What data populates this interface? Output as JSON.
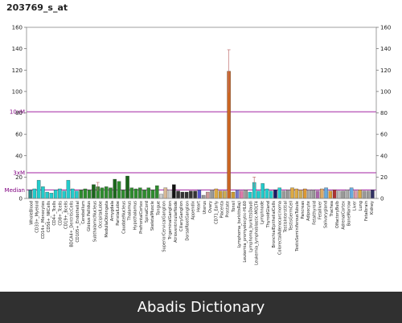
{
  "page": {
    "title": "203769_s_at"
  },
  "footer": {
    "text": "Abadis Dictionary"
  },
  "chart_data": {
    "type": "bar",
    "title": "203769_s_at",
    "ylim": [
      0,
      160
    ],
    "yticks": [
      0,
      20,
      40,
      60,
      80,
      100,
      120,
      140,
      160
    ],
    "y2ticks": [
      0,
      20,
      40,
      60,
      80,
      100,
      120,
      140,
      160
    ],
    "reference_lines": [
      {
        "label": "Median",
        "value": 8,
        "color": "#a020a0"
      },
      {
        "label": "3xM",
        "value": 24,
        "color": "#a020a0"
      },
      {
        "label": "10xM",
        "value": 81,
        "color": "#a020a0"
      }
    ],
    "categories": [
      "WholeBlood",
      "CD33+_Myeloid",
      "CD14+_Monocytes",
      "PB-CD14+Monocytes",
      "CD56+_NKCells",
      "CD4+_Tcells",
      "CD8+_Tcells",
      "CD19+_Bcells",
      "BDCA4+_DentriticCells",
      "CD71+_EarlyErythroid",
      "CD105+_Endothelial",
      "CD34+",
      "Cerebellum",
      "CerebellumPeduncles",
      "Globus Pallidus",
      "Hypothalamus",
      "SubthalamicNucleus",
      "Amygdala",
      "OccipitalLobe",
      "CingulateCortex",
      "TemporalLobe",
      "MedullaOblongata",
      "ParietalLobe",
      "CaudateNucleus",
      "Thalamus",
      "Hippocampus",
      "Pons",
      "PrefrontalCortex",
      "SpinalCord",
      "WholeBrain",
      "fetalbrain",
      "SkeletalMuscle",
      "Tongue",
      "SuperiorCervicalGanglion",
      "TrigeminalGanglion",
      "CiliaryGanglion",
      "AtrioventricularNode",
      "DorsalRootGanglion",
      "Heart",
      "Appendix",
      "UterusCorpus",
      "Uterus",
      "Ovary",
      "Skin",
      "Placenta",
      "CD71_Early",
      "Testis",
      "Prostate",
      "Thymus",
      "Tonsil",
      "Lymphoma_burkittsRaji",
      "Leukemia_promyelocytic-HL60",
      "Lymphoma_burkittsDaudi",
      "Leukemia_lymphoblastic-MOLT4",
      "Leukemia_chronicMyelogenous-K562",
      "Lymphnode",
      "ThyroidGland",
      "BronchialEpithelialCells",
      "ColorectalAdenocarcinoma",
      "Adrenalgland",
      "Pancreas",
      "TestisInterstitial",
      "TestisGermCell",
      "TestisLeydigCell",
      "TestisSeminiferousTubule",
      "PancreaticIslet",
      "Pituitary",
      "Adipocyte",
      "Fetalthyroid",
      "Fetalliver",
      "FetalLung",
      "Salivarygland",
      "Trachea",
      "OlfactoryBulb",
      "AdrenalCortex",
      "Appendix2",
      "BoneMarrow",
      "Liver",
      "Lung",
      "Heart2",
      "Kidney",
      "Fetalkidney"
    ],
    "xlabels": [
      "WholeBlood",
      "CD33+_Myeloid",
      "CD14+_Monocytes",
      "CD56+_NKCells",
      "CD4+_Tcells",
      "CD8+_Tcells",
      "CD19+_Bcells",
      "BDCA4+_DentriticCells",
      "CD105+_Endothelial",
      "Cerebellum",
      "Globus Pallidus",
      "SubthalamicNucleus",
      "OccipitalLobe",
      "MedullaOblongata",
      "Amygdala",
      "ParietalLobe",
      "CaudateNucleus",
      "Thalamus",
      "Hypothalamus",
      "PrefrontalCortex",
      "SpinalCord",
      "SkeletalMuscle",
      "Tongue",
      "SuperiorCervicalGanglion",
      "TrigeminalGanglion",
      "AtrioventricularNode",
      "CiliaryGanglion",
      "DorsalRootGanglion",
      "Appendix",
      "Heart",
      "Uterus",
      "Ovary",
      "CD71_Early",
      "Placenta",
      "Prostate",
      "Tonsil",
      "Lymphoma_burkittsRaji",
      "Leukemia_promyelocytic-HL60",
      "Lymphoma_burkittsDaudi",
      "Leukemia_lymphoblastic-MOLT4",
      "Lymphnode",
      "ThyroidGland",
      "BronchialEpithelialCells",
      "ColorectalAdenocarcinoma",
      "TestisInterstitial",
      "TestisGermCell",
      "TestisSeminiferousTubule",
      "Pancreas",
      "Adipocyte",
      "Fetalthyroid",
      "Fetalliver",
      "Salivarygland",
      "Trachea",
      "OlfactoryBulb",
      "AdrenalCortex",
      "BoneMarrow",
      "Liver",
      "Lung",
      "Fetalbrain",
      "Kidney"
    ],
    "values": [
      8,
      9,
      17,
      11,
      6,
      5,
      8,
      9,
      7,
      17,
      9,
      7,
      8,
      9,
      8,
      13,
      11,
      10,
      11,
      10,
      18,
      16,
      8,
      21,
      10,
      9,
      10,
      8,
      10,
      8,
      12,
      4,
      10,
      8,
      13,
      7,
      6,
      6,
      7,
      7,
      8,
      3,
      6,
      8,
      9,
      7,
      7,
      119,
      6,
      8,
      7,
      8,
      6,
      15,
      7,
      14,
      9,
      7,
      8,
      10,
      7,
      8,
      10,
      9,
      8,
      9,
      8,
      8,
      7,
      9,
      10,
      7,
      8,
      7,
      7,
      8,
      10,
      7,
      8,
      7,
      7,
      8
    ],
    "errors": [
      0,
      0,
      0,
      0,
      0,
      0,
      0,
      0,
      0,
      0,
      0,
      0,
      0,
      0,
      0,
      0,
      4,
      0,
      0,
      0,
      0,
      0,
      0,
      0,
      0,
      0,
      0,
      0,
      0,
      0,
      0,
      0,
      0,
      0,
      0,
      0,
      0,
      0,
      0,
      0,
      0,
      0,
      0,
      0,
      0,
      0,
      0,
      20,
      0,
      0,
      0,
      0,
      0,
      5,
      0,
      0,
      0,
      0,
      0,
      0,
      0,
      0,
      0,
      0,
      0,
      0,
      0,
      0,
      0,
      0,
      0,
      0,
      0,
      0,
      0,
      0,
      0,
      0,
      0,
      0,
      0,
      0
    ],
    "colors": [
      "#2e8b8b",
      "#22cccc",
      "#22cccc",
      "#22cccc",
      "#22cccc",
      "#22cccc",
      "#22cccc",
      "#22cccc",
      "#22cccc",
      "#22cccc",
      "#22cccc",
      "#22cccc",
      "#2e8b2e",
      "#2e8b2e",
      "#2e8b2e",
      "#1a661a",
      "#2e8b2e",
      "#2e8b2e",
      "#2e8b2e",
      "#2e8b2e",
      "#1a661a",
      "#2e8b2e",
      "#2e8b2e",
      "#1a661a",
      "#2e8b2e",
      "#2e8b2e",
      "#2e8b2e",
      "#2e8b2e",
      "#2e8b2e",
      "#2e8b2e",
      "#2e8b2e",
      "#cccccc",
      "#d8b894",
      "#cccccc",
      "#111111",
      "#333333",
      "#333333",
      "#333333",
      "#333333",
      "#333333",
      "#5555cc",
      "#999999",
      "#cc9999",
      "#999999",
      "#ddaa44",
      "#cc9933",
      "#ccaa55",
      "#cc6622",
      "#cc9933",
      "#7777cc",
      "#dd77aa",
      "#999999",
      "#22cccc",
      "#22cccc",
      "#22cccc",
      "#22cccc",
      "#22cccc",
      "#22cccc",
      "#1a1a66",
      "#22cccc",
      "#999999",
      "#999999",
      "#ddaa44",
      "#ddaa44",
      "#ccaa55",
      "#dd9933",
      "#aaaaaa",
      "#999999",
      "#aa66aa",
      "#ddaa66",
      "#66aadd",
      "#dd9933",
      "#aa3333",
      "#bbbbbb",
      "#999999",
      "#aaaaaa",
      "#66aadd",
      "#dd99aa",
      "#ddaa44",
      "#999999",
      "#999999",
      "#333366"
    ]
  }
}
